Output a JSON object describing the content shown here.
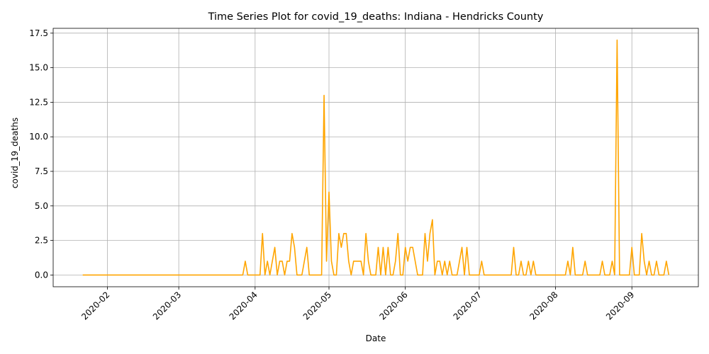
{
  "chart_data": {
    "type": "line",
    "title": "Time Series Plot for covid_19_deaths: Indiana - Hendricks County",
    "xlabel": "Date",
    "ylabel": "covid_19_deaths",
    "color": "orange",
    "grid": true,
    "x": [
      "2020-01-22",
      "2020-01-23",
      "2020-01-24",
      "2020-01-25",
      "2020-01-26",
      "2020-01-27",
      "2020-01-28",
      "2020-01-29",
      "2020-01-30",
      "2020-01-31",
      "2020-02-01",
      "2020-02-02",
      "2020-02-03",
      "2020-02-04",
      "2020-02-05",
      "2020-02-06",
      "2020-02-07",
      "2020-02-08",
      "2020-02-09",
      "2020-02-10",
      "2020-02-11",
      "2020-02-12",
      "2020-02-13",
      "2020-02-14",
      "2020-02-15",
      "2020-02-16",
      "2020-02-17",
      "2020-02-18",
      "2020-02-19",
      "2020-02-20",
      "2020-02-21",
      "2020-02-22",
      "2020-02-23",
      "2020-02-24",
      "2020-02-25",
      "2020-02-26",
      "2020-02-27",
      "2020-02-28",
      "2020-02-29",
      "2020-03-01",
      "2020-03-02",
      "2020-03-03",
      "2020-03-04",
      "2020-03-05",
      "2020-03-06",
      "2020-03-07",
      "2020-03-08",
      "2020-03-09",
      "2020-03-10",
      "2020-03-11",
      "2020-03-12",
      "2020-03-13",
      "2020-03-14",
      "2020-03-15",
      "2020-03-16",
      "2020-03-17",
      "2020-03-18",
      "2020-03-19",
      "2020-03-20",
      "2020-03-21",
      "2020-03-22",
      "2020-03-23",
      "2020-03-24",
      "2020-03-25",
      "2020-03-26",
      "2020-03-27",
      "2020-03-28",
      "2020-03-29",
      "2020-03-30",
      "2020-03-31",
      "2020-04-01",
      "2020-04-02",
      "2020-04-03",
      "2020-04-04",
      "2020-04-05",
      "2020-04-06",
      "2020-04-07",
      "2020-04-08",
      "2020-04-09",
      "2020-04-10",
      "2020-04-11",
      "2020-04-12",
      "2020-04-13",
      "2020-04-14",
      "2020-04-15",
      "2020-04-16",
      "2020-04-17",
      "2020-04-18",
      "2020-04-19",
      "2020-04-20",
      "2020-04-21",
      "2020-04-22",
      "2020-04-23",
      "2020-04-24",
      "2020-04-25",
      "2020-04-26",
      "2020-04-27",
      "2020-04-28",
      "2020-04-29",
      "2020-04-30",
      "2020-05-01",
      "2020-05-02",
      "2020-05-03",
      "2020-05-04",
      "2020-05-05",
      "2020-05-06",
      "2020-05-07",
      "2020-05-08",
      "2020-05-09",
      "2020-05-10",
      "2020-05-11",
      "2020-05-12",
      "2020-05-13",
      "2020-05-14",
      "2020-05-15",
      "2020-05-16",
      "2020-05-17",
      "2020-05-18",
      "2020-05-19",
      "2020-05-20",
      "2020-05-21",
      "2020-05-22",
      "2020-05-23",
      "2020-05-24",
      "2020-05-25",
      "2020-05-26",
      "2020-05-27",
      "2020-05-28",
      "2020-05-29",
      "2020-05-30",
      "2020-05-31",
      "2020-06-01",
      "2020-06-02",
      "2020-06-03",
      "2020-06-04",
      "2020-06-05",
      "2020-06-06",
      "2020-06-07",
      "2020-06-08",
      "2020-06-09",
      "2020-06-10",
      "2020-06-11",
      "2020-06-12",
      "2020-06-13",
      "2020-06-14",
      "2020-06-15",
      "2020-06-16",
      "2020-06-17",
      "2020-06-18",
      "2020-06-19",
      "2020-06-20",
      "2020-06-21",
      "2020-06-22",
      "2020-06-23",
      "2020-06-24",
      "2020-06-25",
      "2020-06-26",
      "2020-06-27",
      "2020-06-28",
      "2020-06-29",
      "2020-06-30",
      "2020-07-01",
      "2020-07-02",
      "2020-07-03",
      "2020-07-04",
      "2020-07-05",
      "2020-07-06",
      "2020-07-07",
      "2020-07-08",
      "2020-07-09",
      "2020-07-10",
      "2020-07-11",
      "2020-07-12",
      "2020-07-13",
      "2020-07-14",
      "2020-07-15",
      "2020-07-16",
      "2020-07-17",
      "2020-07-18",
      "2020-07-19",
      "2020-07-20",
      "2020-07-21",
      "2020-07-22",
      "2020-07-23",
      "2020-07-24",
      "2020-07-25",
      "2020-07-26",
      "2020-07-27",
      "2020-07-28",
      "2020-07-29",
      "2020-07-30",
      "2020-07-31",
      "2020-08-01",
      "2020-08-02",
      "2020-08-03",
      "2020-08-04",
      "2020-08-05",
      "2020-08-06",
      "2020-08-07",
      "2020-08-08",
      "2020-08-09",
      "2020-08-10",
      "2020-08-11",
      "2020-08-12",
      "2020-08-13",
      "2020-08-14",
      "2020-08-15",
      "2020-08-16",
      "2020-08-17",
      "2020-08-18",
      "2020-08-19",
      "2020-08-20",
      "2020-08-21",
      "2020-08-22",
      "2020-08-23",
      "2020-08-24",
      "2020-08-25",
      "2020-08-26",
      "2020-08-27",
      "2020-08-28",
      "2020-08-29",
      "2020-08-30",
      "2020-08-31",
      "2020-09-01",
      "2020-09-02",
      "2020-09-03",
      "2020-09-04",
      "2020-09-05",
      "2020-09-06",
      "2020-09-07",
      "2020-09-08",
      "2020-09-09",
      "2020-09-10",
      "2020-09-11",
      "2020-09-12",
      "2020-09-13",
      "2020-09-14",
      "2020-09-15",
      "2020-09-16"
    ],
    "values": [
      0,
      0,
      0,
      0,
      0,
      0,
      0,
      0,
      0,
      0,
      0,
      0,
      0,
      0,
      0,
      0,
      0,
      0,
      0,
      0,
      0,
      0,
      0,
      0,
      0,
      0,
      0,
      0,
      0,
      0,
      0,
      0,
      0,
      0,
      0,
      0,
      0,
      0,
      0,
      0,
      0,
      0,
      0,
      0,
      0,
      0,
      0,
      0,
      0,
      0,
      0,
      0,
      0,
      0,
      0,
      0,
      0,
      0,
      0,
      0,
      0,
      0,
      0,
      0,
      0,
      0,
      1,
      0,
      0,
      0,
      0,
      0,
      0,
      3,
      0,
      1,
      0,
      1,
      2,
      0,
      1,
      1,
      0,
      1,
      1,
      3,
      2,
      0,
      0,
      0,
      1,
      2,
      0,
      0,
      0,
      0,
      0,
      0,
      13,
      1,
      6,
      1,
      0,
      0,
      3,
      2,
      3,
      3,
      1,
      0,
      1,
      1,
      1,
      1,
      0,
      3,
      1,
      0,
      0,
      0,
      2,
      0,
      2,
      0,
      2,
      0,
      0,
      1,
      3,
      0,
      0,
      2,
      1,
      2,
      2,
      1,
      0,
      0,
      0,
      3,
      1,
      3,
      4,
      0,
      1,
      1,
      0,
      1,
      0,
      1,
      0,
      0,
      0,
      1,
      2,
      0,
      2,
      0,
      0,
      0,
      0,
      0,
      1,
      0,
      0,
      0,
      0,
      0,
      0,
      0,
      0,
      0,
      0,
      0,
      0,
      2,
      0,
      0,
      1,
      0,
      0,
      1,
      0,
      1,
      0,
      0,
      0,
      0,
      0,
      0,
      0,
      0,
      0,
      0,
      0,
      0,
      0,
      1,
      0,
      2,
      0,
      0,
      0,
      0,
      1,
      0,
      0,
      0,
      0,
      0,
      0,
      1,
      0,
      0,
      0,
      1,
      0,
      17,
      0,
      0,
      0,
      0,
      0,
      2,
      0,
      0,
      0,
      3,
      1,
      0,
      1,
      0,
      0,
      1,
      0,
      0,
      0,
      1,
      0
    ],
    "xlim": [
      "2020-01-10",
      "2020-09-28"
    ],
    "xticks": [
      {
        "value": "2020-02-01",
        "label": "2020-02"
      },
      {
        "value": "2020-03-01",
        "label": "2020-03"
      },
      {
        "value": "2020-04-01",
        "label": "2020-04"
      },
      {
        "value": "2020-05-01",
        "label": "2020-05"
      },
      {
        "value": "2020-06-01",
        "label": "2020-06"
      },
      {
        "value": "2020-07-01",
        "label": "2020-07"
      },
      {
        "value": "2020-08-01",
        "label": "2020-08"
      },
      {
        "value": "2020-09-01",
        "label": "2020-09"
      }
    ],
    "ylim": [
      -0.85,
      17.85
    ],
    "yticks": [
      {
        "value": 0,
        "label": "0.0"
      },
      2.5,
      {
        "value": 5,
        "label": "5.0"
      },
      7.5,
      {
        "value": 10,
        "label": "10.0"
      },
      12.5,
      {
        "value": 15,
        "label": "15.0"
      },
      17.5
    ]
  }
}
